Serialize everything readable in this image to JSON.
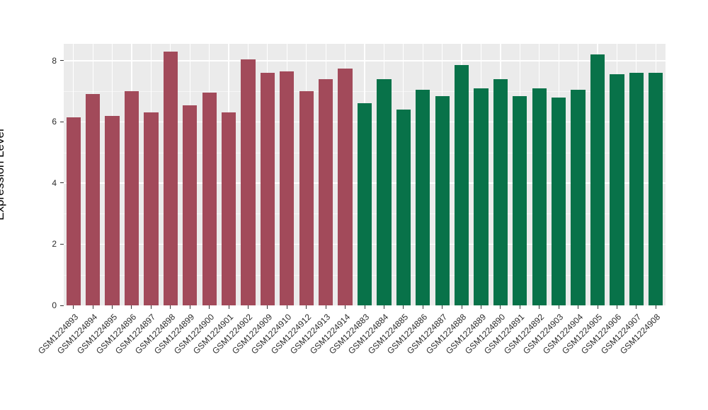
{
  "chart_data": {
    "type": "bar",
    "title": "",
    "xlabel": "",
    "ylabel": "Expression Level",
    "ylim": [
      0,
      8.55
    ],
    "yticks_major": [
      0,
      2,
      4,
      6,
      8
    ],
    "yticks_minor": [
      1,
      3,
      5,
      7
    ],
    "panel_background": "#EBEBEB",
    "grid_color": "#FFFFFF",
    "legend": "none",
    "groups": [
      {
        "name": "red-group",
        "color": "#A24A5A"
      },
      {
        "name": "green-group",
        "color": "#087249"
      }
    ],
    "bars": [
      {
        "label": "GSM1224893",
        "value": 6.15,
        "group": 0
      },
      {
        "label": "GSM1224894",
        "value": 6.9,
        "group": 0
      },
      {
        "label": "GSM1224895",
        "value": 6.2,
        "group": 0
      },
      {
        "label": "GSM1224896",
        "value": 7.0,
        "group": 0
      },
      {
        "label": "GSM1224897",
        "value": 6.3,
        "group": 0
      },
      {
        "label": "GSM1224898",
        "value": 8.3,
        "group": 0
      },
      {
        "label": "GSM1224899",
        "value": 6.55,
        "group": 0
      },
      {
        "label": "GSM1224900",
        "value": 6.95,
        "group": 0
      },
      {
        "label": "GSM1224901",
        "value": 6.3,
        "group": 0
      },
      {
        "label": "GSM1224902",
        "value": 8.05,
        "group": 0
      },
      {
        "label": "GSM1224909",
        "value": 7.6,
        "group": 0
      },
      {
        "label": "GSM1224910",
        "value": 7.65,
        "group": 0
      },
      {
        "label": "GSM1224912",
        "value": 7.0,
        "group": 0
      },
      {
        "label": "GSM1224913",
        "value": 7.4,
        "group": 0
      },
      {
        "label": "GSM1224914",
        "value": 7.75,
        "group": 0
      },
      {
        "label": "GSM1224883",
        "value": 6.6,
        "group": 1
      },
      {
        "label": "GSM1224884",
        "value": 7.4,
        "group": 1
      },
      {
        "label": "GSM1224885",
        "value": 6.4,
        "group": 1
      },
      {
        "label": "GSM1224886",
        "value": 7.05,
        "group": 1
      },
      {
        "label": "GSM1224887",
        "value": 6.85,
        "group": 1
      },
      {
        "label": "GSM1224888",
        "value": 7.85,
        "group": 1
      },
      {
        "label": "GSM1224889",
        "value": 7.1,
        "group": 1
      },
      {
        "label": "GSM1224890",
        "value": 7.4,
        "group": 1
      },
      {
        "label": "GSM1224891",
        "value": 6.85,
        "group": 1
      },
      {
        "label": "GSM1224892",
        "value": 7.1,
        "group": 1
      },
      {
        "label": "GSM1224903",
        "value": 6.8,
        "group": 1
      },
      {
        "label": "GSM1224904",
        "value": 7.05,
        "group": 1
      },
      {
        "label": "GSM1224905",
        "value": 8.2,
        "group": 1
      },
      {
        "label": "GSM1224906",
        "value": 7.55,
        "group": 1
      },
      {
        "label": "GSM1224907",
        "value": 7.6,
        "group": 1
      },
      {
        "label": "GSM1224908",
        "value": 7.6,
        "group": 1
      }
    ]
  }
}
